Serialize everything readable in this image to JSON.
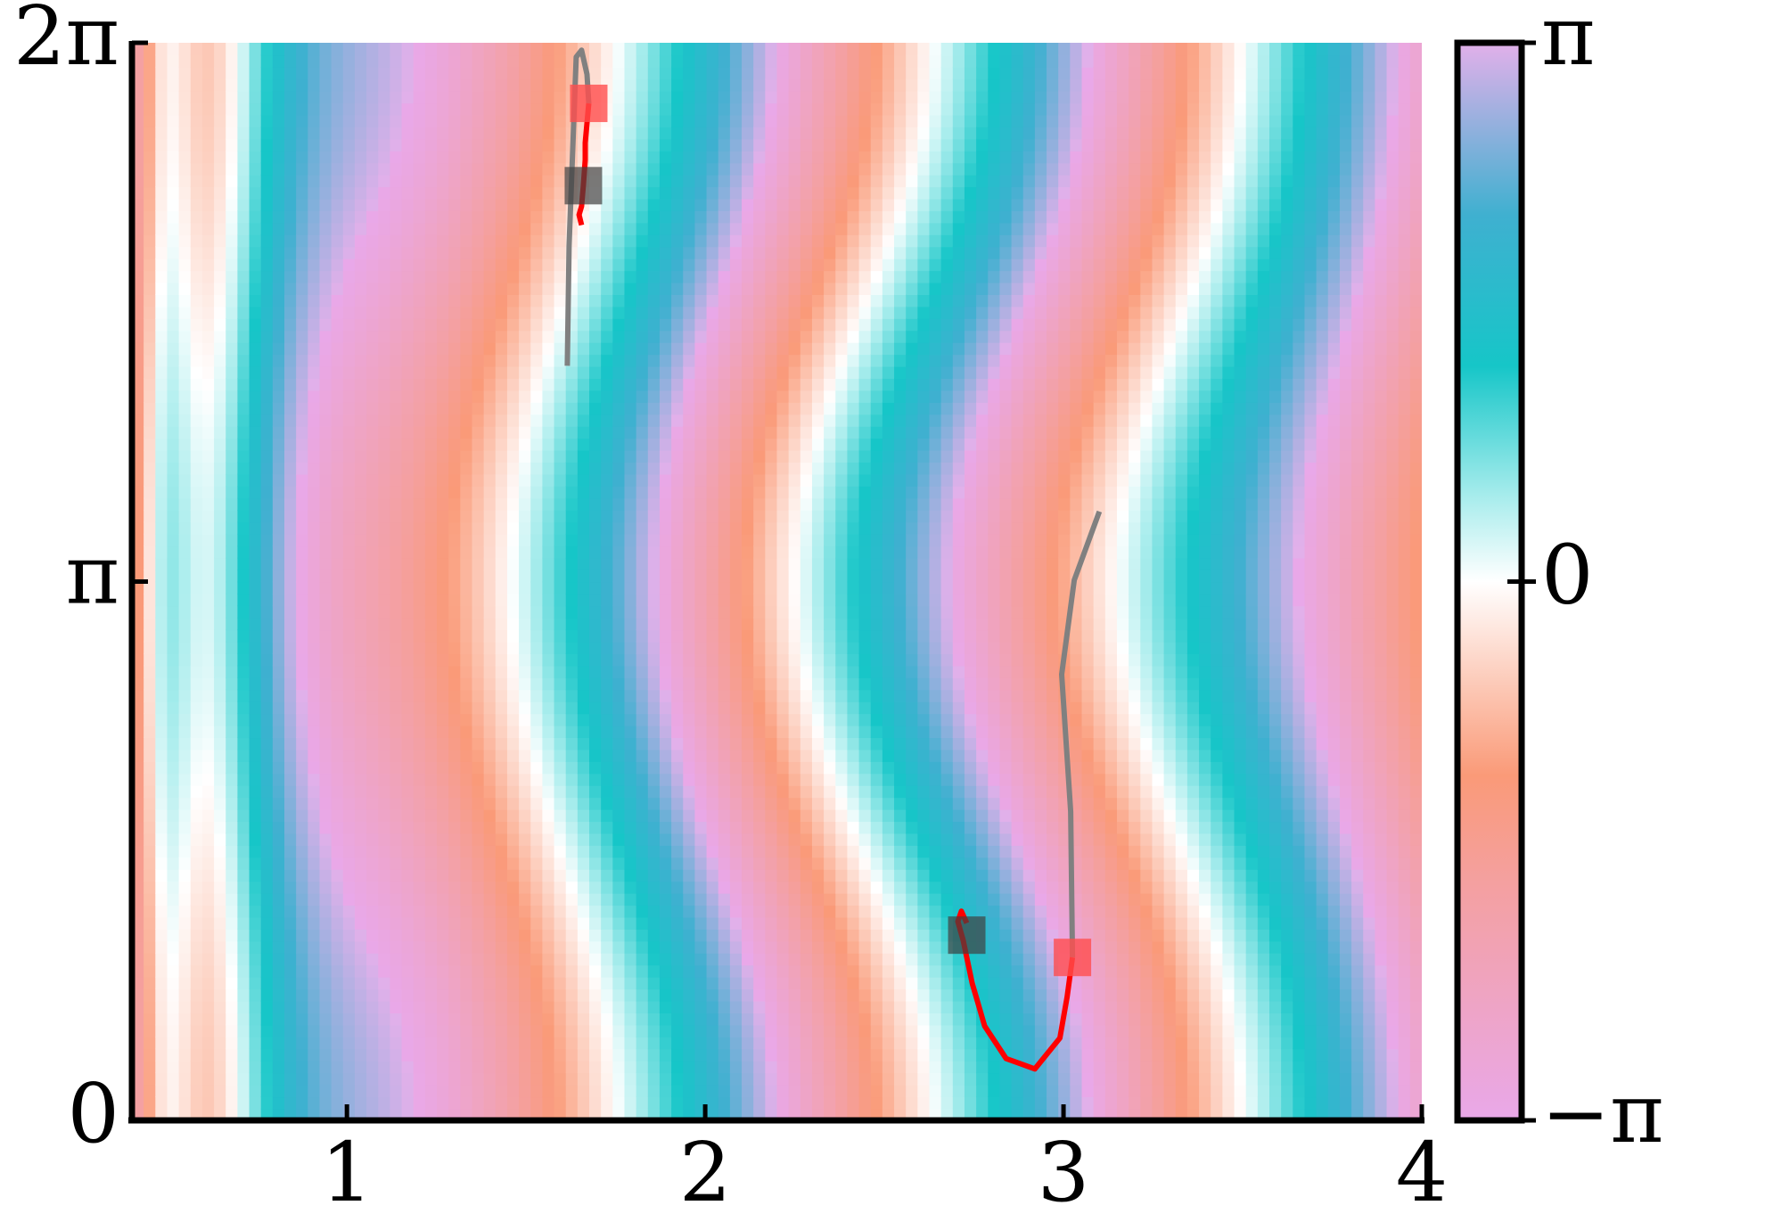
{
  "chart_data": {
    "type": "heatmap",
    "title": "",
    "xlabel": "",
    "ylabel": "",
    "xlim": [
      0.4,
      4.0
    ],
    "ylim": [
      0,
      6.2832
    ],
    "x_ticks": [
      {
        "value": 1,
        "label": "1"
      },
      {
        "value": 2,
        "label": "2"
      },
      {
        "value": 3,
        "label": "3"
      },
      {
        "value": 4,
        "label": "4"
      }
    ],
    "y_ticks": [
      {
        "value": 0,
        "label": "0"
      },
      {
        "value": 3.1416,
        "label": "π"
      },
      {
        "value": 6.2832,
        "label": "2π"
      }
    ],
    "colorbar": {
      "range": [
        -3.1416,
        3.1416
      ],
      "ticks": [
        {
          "value": 3.1416,
          "label": "π"
        },
        {
          "value": 0,
          "label": "0"
        },
        {
          "value": -3.1416,
          "label": "−π"
        }
      ],
      "colormap": [
        {
          "at": 0.0,
          "color": "#e9a8e9"
        },
        {
          "at": 0.22,
          "color": "#f4a0a0"
        },
        {
          "at": 0.32,
          "color": "#fa9a78"
        },
        {
          "at": 0.5,
          "color": "#ffffff"
        },
        {
          "at": 0.58,
          "color": "#a6ecec"
        },
        {
          "at": 0.7,
          "color": "#16c6c8"
        },
        {
          "at": 0.84,
          "color": "#3fb0d0"
        },
        {
          "at": 1.0,
          "color": "#e2b0ea"
        }
      ]
    },
    "grid": false,
    "legend": "none",
    "trajectories": [
      {
        "color": "#ff0000",
        "tail_color": "#808080",
        "start_marker_color": "#ff4d4d",
        "end_marker_color": "#404040",
        "points": [
          [
            1.655,
            5.22
          ],
          [
            1.648,
            5.28
          ],
          [
            1.655,
            5.33
          ],
          [
            1.66,
            5.45
          ],
          [
            1.665,
            5.6
          ],
          [
            1.665,
            5.7
          ],
          [
            1.675,
            5.93
          ]
        ],
        "tail": [
          [
            1.675,
            5.93
          ],
          [
            1.67,
            6.1
          ],
          [
            1.655,
            6.24
          ],
          [
            1.64,
            6.2
          ],
          [
            1.62,
            5.1
          ],
          [
            1.615,
            4.4
          ]
        ],
        "start": [
          1.675,
          5.93
        ],
        "end": [
          1.66,
          5.45
        ]
      },
      {
        "color": "#ff0000",
        "tail_color": "#808080",
        "start_marker_color": "#ff4d4d",
        "end_marker_color": "#404040",
        "points": [
          [
            2.73,
            1.15
          ],
          [
            2.715,
            1.22
          ],
          [
            2.705,
            1.16
          ],
          [
            2.72,
            1.05
          ],
          [
            2.745,
            0.8
          ],
          [
            2.78,
            0.55
          ],
          [
            2.84,
            0.36
          ],
          [
            2.92,
            0.3
          ],
          [
            2.99,
            0.48
          ],
          [
            3.01,
            0.72
          ],
          [
            3.025,
            0.95
          ]
        ],
        "tail": [
          [
            3.025,
            0.95
          ],
          [
            3.02,
            1.8
          ],
          [
            2.995,
            2.6
          ],
          [
            3.03,
            3.15
          ],
          [
            3.1,
            3.55
          ]
        ],
        "start": [
          3.025,
          0.95
        ],
        "end": [
          2.73,
          1.08
        ]
      }
    ]
  }
}
